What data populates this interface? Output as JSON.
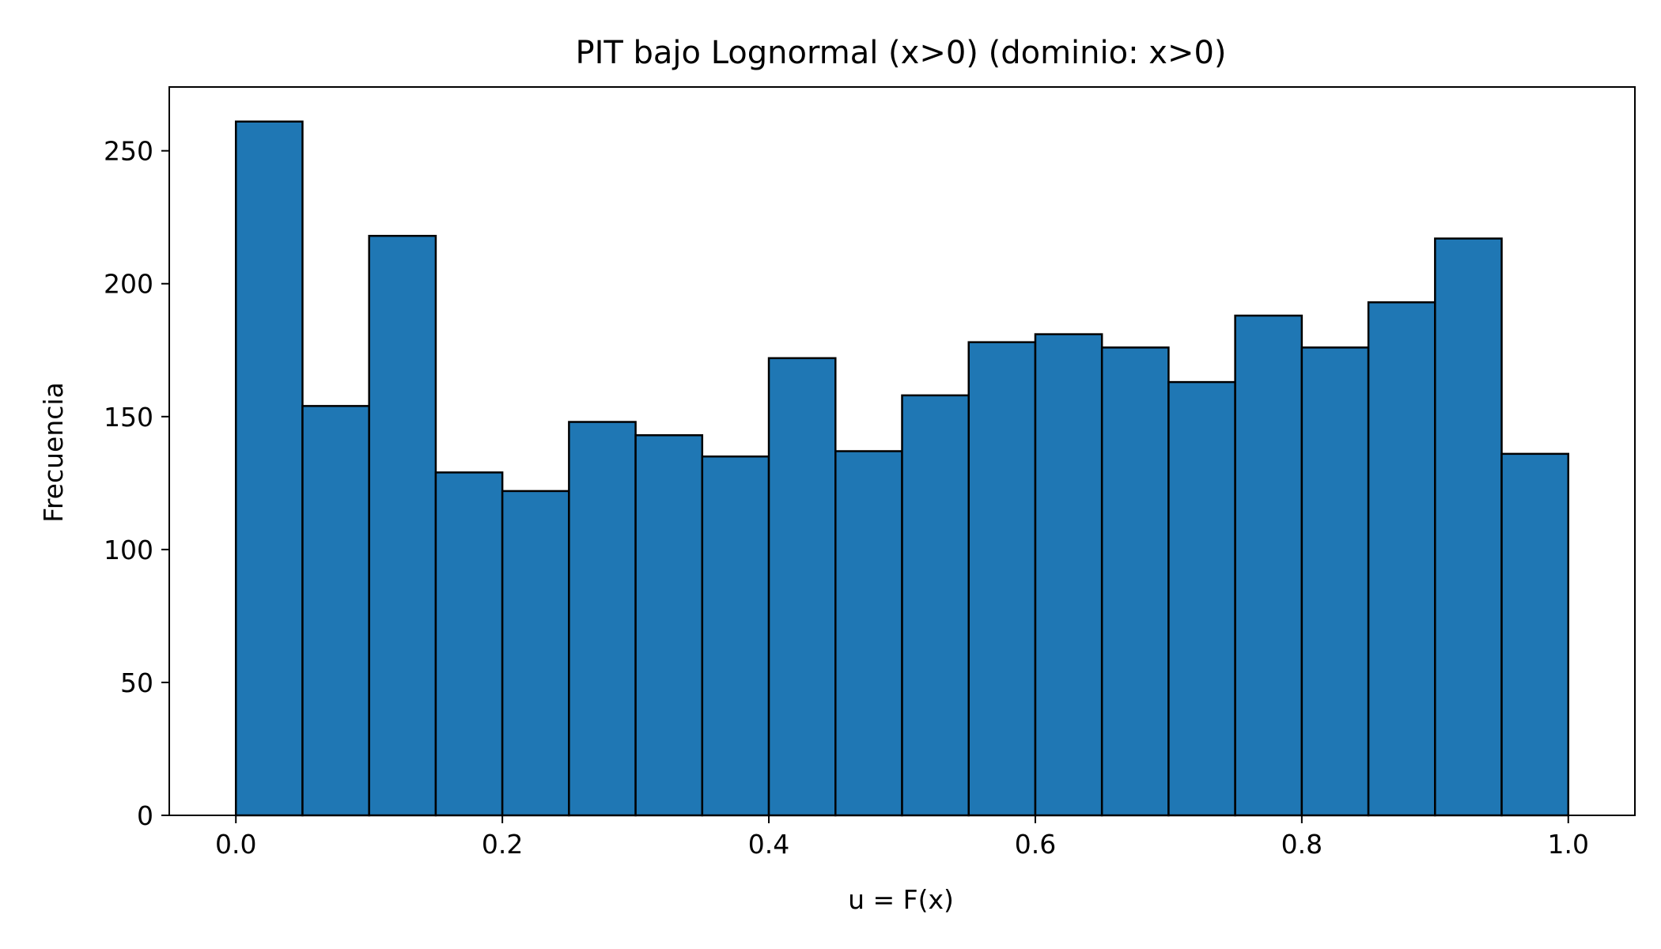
{
  "chart_data": {
    "type": "bar",
    "subtype": "histogram",
    "title": "PIT bajo Lognormal (x>0) (dominio: x>0)",
    "xlabel": "u = F(x)",
    "ylabel": "Frecuencia",
    "bin_edges": [
      0.0,
      0.05,
      0.1,
      0.15,
      0.2,
      0.25,
      0.3,
      0.35,
      0.4,
      0.45,
      0.5,
      0.55,
      0.6,
      0.65,
      0.7,
      0.75,
      0.8,
      0.85,
      0.9,
      0.95,
      1.0
    ],
    "values": [
      261,
      154,
      218,
      129,
      122,
      148,
      143,
      135,
      172,
      137,
      158,
      178,
      181,
      176,
      163,
      188,
      176,
      193,
      217,
      136
    ],
    "xlim": [
      -0.05,
      1.05
    ],
    "ylim": [
      0,
      274
    ],
    "xticks": [
      0.0,
      0.2,
      0.4,
      0.6,
      0.8,
      1.0
    ],
    "xtick_labels": [
      "0.0",
      "0.2",
      "0.4",
      "0.6",
      "0.8",
      "1.0"
    ],
    "yticks": [
      0,
      50,
      100,
      150,
      200,
      250
    ],
    "ytick_labels": [
      "0",
      "50",
      "100",
      "150",
      "200",
      "250"
    ],
    "grid": false,
    "legend": "none",
    "bar_color": "#1f77b4",
    "edge_color": "#000000"
  }
}
